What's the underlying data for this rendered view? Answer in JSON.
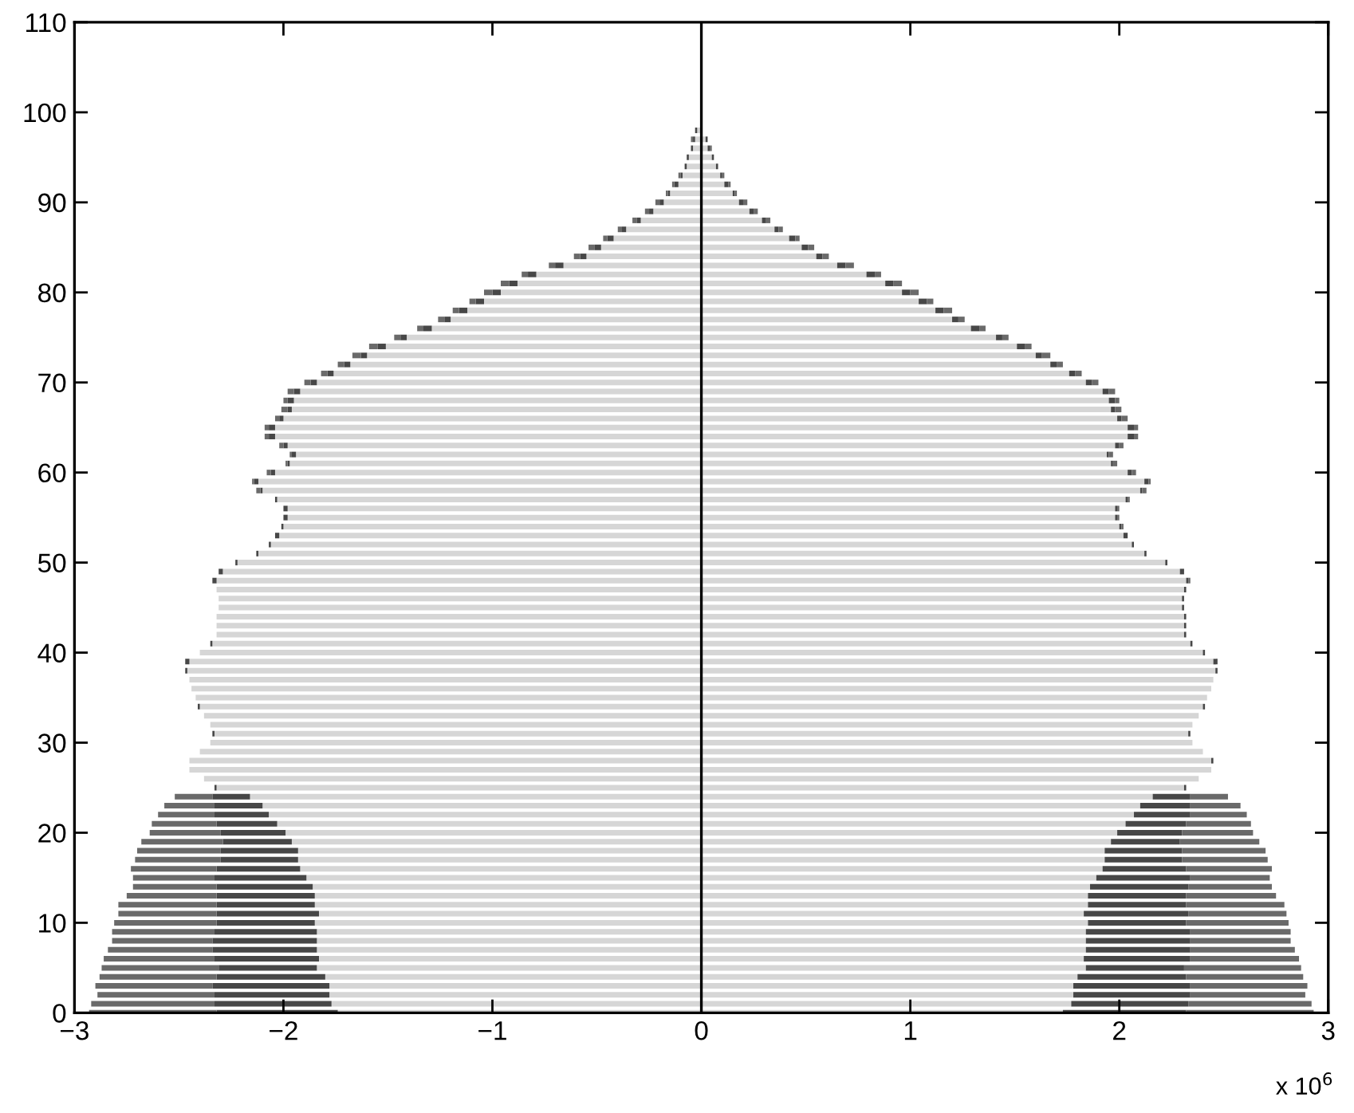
{
  "chart_data": {
    "type": "bar",
    "orientation": "horizontal",
    "stacked": true,
    "x": [
      0,
      1,
      2,
      3,
      4,
      5,
      6,
      7,
      8,
      9,
      10,
      11,
      12,
      13,
      14,
      15,
      16,
      17,
      18,
      19,
      20,
      21,
      22,
      23,
      24,
      25,
      26,
      27,
      28,
      29,
      30,
      31,
      32,
      33,
      34,
      35,
      36,
      37,
      38,
      39,
      40,
      41,
      42,
      43,
      44,
      45,
      46,
      47,
      48,
      49,
      50,
      51,
      52,
      53,
      54,
      55,
      56,
      57,
      58,
      59,
      60,
      61,
      62,
      63,
      64,
      65,
      66,
      67,
      68,
      69,
      70,
      71,
      72,
      73,
      74,
      75,
      76,
      77,
      78,
      79,
      80,
      81,
      82,
      83,
      84,
      85,
      86,
      87,
      88,
      89,
      90,
      91,
      92,
      93,
      94,
      95,
      96,
      97,
      98,
      99
    ],
    "series": [
      {
        "color": "#d6d6d6",
        "values": [
          -1.74,
          -1.77,
          -1.78,
          -1.78,
          -1.8,
          -1.84,
          -1.83,
          -1.84,
          -1.84,
          -1.84,
          -1.85,
          -1.83,
          -1.85,
          -1.85,
          -1.86,
          -1.89,
          -1.92,
          -1.93,
          -1.93,
          -1.96,
          -1.99,
          -2.03,
          -2.07,
          -2.1,
          -2.16,
          -2.32,
          -2.38,
          -2.45,
          -2.45,
          -2.4,
          -2.35,
          -2.33,
          -2.35,
          -2.38,
          -2.4,
          -2.42,
          -2.44,
          -2.45,
          -2.46,
          -2.45,
          -2.4,
          -2.34,
          -2.32,
          -2.32,
          -2.32,
          -2.31,
          -2.31,
          -2.32,
          -2.32,
          -2.29,
          -2.22,
          -2.12,
          -2.06,
          -2.02,
          -2.0,
          -1.98,
          -1.98,
          -2.03,
          -2.1,
          -2.12,
          -2.04,
          -1.97,
          -1.94,
          -1.98,
          -2.04,
          -2.04,
          -2.0,
          -1.96,
          -1.95,
          -1.92,
          -1.84,
          -1.76,
          -1.68,
          -1.6,
          -1.51,
          -1.41,
          -1.29,
          -1.2,
          -1.12,
          -1.04,
          -0.96,
          -0.88,
          -0.79,
          -0.66,
          -0.55,
          -0.48,
          -0.42,
          -0.36,
          -0.29,
          -0.23,
          -0.18,
          -0.15,
          -0.11,
          -0.09,
          -0.07,
          -0.06,
          -0.04,
          -0.03,
          -0.02,
          null
        ]
      },
      {
        "color": "#474747",
        "values": [
          -0.58,
          -0.56,
          -0.55,
          -0.56,
          -0.52,
          -0.47,
          -0.5,
          -0.5,
          -0.5,
          -0.49,
          -0.47,
          -0.49,
          -0.47,
          -0.47,
          -0.46,
          -0.44,
          -0.4,
          -0.37,
          -0.37,
          -0.33,
          -0.31,
          -0.29,
          -0.26,
          -0.23,
          -0.18,
          -0.01,
          0,
          0,
          0,
          0,
          0,
          -0.01,
          0,
          0,
          -0.01,
          0,
          0,
          0,
          -0.01,
          -0.02,
          0,
          -0.01,
          0,
          0,
          0,
          0,
          0,
          0,
          -0.02,
          -0.02,
          -0.01,
          -0.01,
          -0.01,
          -0.02,
          -0.01,
          -0.02,
          -0.02,
          -0.01,
          -0.01,
          -0.02,
          -0.02,
          -0.01,
          -0.02,
          -0.02,
          -0.03,
          -0.03,
          -0.02,
          -0.02,
          -0.03,
          -0.03,
          -0.03,
          -0.03,
          -0.03,
          -0.03,
          -0.04,
          -0.03,
          -0.04,
          -0.03,
          -0.04,
          -0.04,
          -0.04,
          -0.04,
          -0.04,
          -0.04,
          -0.03,
          -0.03,
          -0.03,
          -0.02,
          -0.02,
          -0.02,
          -0.02,
          -0.01,
          -0.02,
          -0.01,
          -0.01,
          -0.01,
          -0.01,
          -0.01,
          -0.01,
          0
        ]
      },
      {
        "color": "#6a6a6a",
        "values": [
          -0.61,
          -0.59,
          -0.56,
          -0.56,
          -0.56,
          -0.56,
          -0.53,
          -0.5,
          -0.48,
          -0.49,
          -0.49,
          -0.47,
          -0.47,
          -0.43,
          -0.4,
          -0.39,
          -0.41,
          -0.41,
          -0.4,
          -0.39,
          -0.34,
          -0.31,
          -0.27,
          -0.24,
          -0.18,
          0,
          0,
          0,
          0,
          0,
          0,
          0,
          0,
          0,
          0,
          0,
          0,
          0,
          0,
          0,
          0,
          0,
          0,
          0,
          0,
          0,
          0,
          0,
          0,
          0,
          0,
          0,
          0,
          0,
          0,
          0,
          0,
          0,
          -0.02,
          -0.01,
          -0.02,
          -0.01,
          -0.01,
          -0.02,
          -0.02,
          -0.02,
          -0.02,
          -0.03,
          -0.02,
          -0.03,
          -0.03,
          -0.03,
          -0.03,
          -0.04,
          -0.04,
          -0.03,
          -0.03,
          -0.03,
          -0.03,
          -0.03,
          -0.04,
          -0.04,
          -0.03,
          -0.03,
          -0.03,
          -0.03,
          -0.02,
          -0.02,
          -0.02,
          -0.02,
          -0.02,
          -0.01,
          -0.01,
          -0.01,
          0,
          0,
          0,
          -0.01,
          0,
          0
        ]
      },
      {
        "color": "#d6d6d6",
        "values": [
          1.73,
          1.77,
          1.78,
          1.78,
          1.8,
          1.84,
          1.83,
          1.84,
          1.84,
          1.84,
          1.85,
          1.83,
          1.85,
          1.85,
          1.86,
          1.89,
          1.92,
          1.93,
          1.93,
          1.96,
          1.99,
          2.03,
          2.07,
          2.1,
          2.16,
          2.31,
          2.38,
          2.44,
          2.44,
          2.4,
          2.35,
          2.33,
          2.35,
          2.38,
          2.4,
          2.42,
          2.44,
          2.45,
          2.46,
          2.45,
          2.4,
          2.34,
          2.31,
          2.31,
          2.31,
          2.3,
          2.3,
          2.31,
          2.32,
          2.29,
          2.22,
          2.12,
          2.06,
          2.02,
          2.0,
          1.98,
          1.98,
          2.03,
          2.1,
          2.12,
          2.04,
          1.96,
          1.94,
          1.98,
          2.04,
          2.04,
          1.99,
          1.96,
          1.95,
          1.92,
          1.84,
          1.76,
          1.67,
          1.6,
          1.51,
          1.41,
          1.29,
          1.2,
          1.12,
          1.04,
          0.96,
          0.88,
          0.79,
          0.65,
          0.55,
          0.48,
          0.42,
          0.35,
          0.29,
          0.23,
          0.18,
          0.15,
          0.11,
          0.09,
          0.07,
          0.05,
          0.03,
          0.02,
          null,
          null
        ]
      },
      {
        "color": "#474747",
        "values": [
          0.59,
          0.56,
          0.56,
          0.56,
          0.52,
          0.47,
          0.51,
          0.5,
          0.5,
          0.5,
          0.47,
          0.5,
          0.47,
          0.47,
          0.47,
          0.45,
          0.4,
          0.37,
          0.37,
          0.33,
          0.31,
          0.29,
          0.27,
          0.24,
          0.18,
          0.01,
          0,
          0,
          0.01,
          0,
          0,
          0.01,
          0,
          0,
          0.01,
          0,
          0,
          0,
          0.01,
          0.02,
          0.01,
          0.01,
          0.01,
          0.01,
          0.01,
          0.01,
          0.01,
          0.01,
          0.01,
          0.02,
          0.01,
          0.01,
          0.01,
          0.02,
          0.01,
          0.01,
          0.01,
          0.01,
          0.01,
          0.02,
          0.02,
          0.01,
          0.01,
          0.02,
          0.03,
          0.03,
          0.02,
          0.02,
          0.03,
          0.03,
          0.03,
          0.03,
          0.03,
          0.03,
          0.04,
          0.03,
          0.04,
          0.03,
          0.04,
          0.04,
          0.04,
          0.04,
          0.04,
          0.04,
          0.03,
          0.03,
          0.03,
          0.02,
          0.02,
          0.02,
          0.02,
          0.01,
          0.02,
          0.01,
          0.01,
          0.01,
          0.01,
          0.01,
          0,
          0
        ]
      },
      {
        "color": "#6a6a6a",
        "values": [
          0.61,
          0.59,
          0.55,
          0.56,
          0.56,
          0.56,
          0.52,
          0.5,
          0.48,
          0.48,
          0.49,
          0.47,
          0.47,
          0.43,
          0.4,
          0.38,
          0.41,
          0.41,
          0.4,
          0.38,
          0.34,
          0.31,
          0.27,
          0.24,
          0.18,
          0,
          0,
          0,
          0,
          0,
          0,
          0,
          0,
          0,
          0,
          0,
          0,
          0,
          0,
          0,
          0,
          0,
          0,
          0,
          0,
          0,
          0,
          0,
          0.01,
          0,
          0,
          0,
          0,
          0,
          0.01,
          0.01,
          0.01,
          0.01,
          0.02,
          0.01,
          0.02,
          0.02,
          0.02,
          0.02,
          0.02,
          0.02,
          0.03,
          0.03,
          0.02,
          0.03,
          0.03,
          0.03,
          0.03,
          0.04,
          0.03,
          0.03,
          0.03,
          0.03,
          0.04,
          0.03,
          0.04,
          0.04,
          0.03,
          0.04,
          0.03,
          0.03,
          0.02,
          0.02,
          0.02,
          0.02,
          0.02,
          0.01,
          0.01,
          0.01,
          0,
          0,
          0.01,
          0,
          0,
          0
        ]
      }
    ],
    "xlim": [
      -3,
      3
    ],
    "xticks": [
      {
        "value": -3,
        "label": "−3"
      },
      {
        "value": -2,
        "label": "−2"
      },
      {
        "value": -1,
        "label": "−1"
      },
      0,
      1,
      2,
      3
    ],
    "ylim": [
      0,
      110
    ],
    "yticks": [
      0,
      10,
      20,
      30,
      40,
      50,
      60,
      70,
      80,
      90,
      100,
      110
    ],
    "ref_lines": [
      {
        "axis": "x",
        "value": 0,
        "color": "#000000"
      }
    ],
    "annotations": [
      "x 10$^{6}$"
    ],
    "grid": false,
    "legend": false
  }
}
